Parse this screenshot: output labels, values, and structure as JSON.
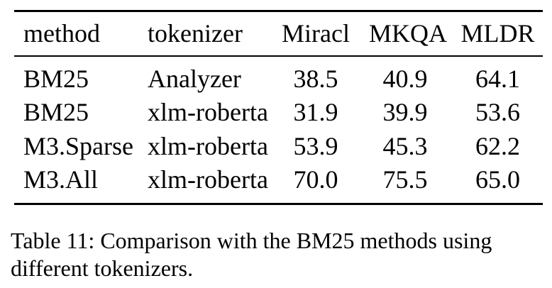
{
  "page": {
    "background": "#ffffff",
    "text_color": "#000000",
    "rule_color": "#000000"
  },
  "table": {
    "headers": [
      "method",
      "tokenizer",
      "Miracl",
      "MKQA",
      "MLDR"
    ],
    "rows": [
      [
        "BM25",
        "Analyzer",
        "38.5",
        "40.9",
        "64.1"
      ],
      [
        "BM25",
        "xlm-roberta",
        "31.9",
        "39.9",
        "53.6"
      ],
      [
        "M3.Sparse",
        "xlm-roberta",
        "53.9",
        "45.3",
        "62.2"
      ],
      [
        "M3.All",
        "xlm-roberta",
        "70.0",
        "75.5",
        "65.0"
      ]
    ]
  },
  "caption": {
    "line1": "Table 11: Comparison with the BM25 methods using",
    "line2": "different tokenizers.",
    "full_text": "Table 11: Comparison with the BM25 methods using different tokenizers."
  },
  "chart_data": {
    "type": "table",
    "title": "Table 11: Comparison with the BM25 methods using different tokenizers.",
    "columns": [
      "method",
      "tokenizer",
      "Miracl",
      "MKQA",
      "MLDR"
    ],
    "rows": [
      {
        "method": "BM25",
        "tokenizer": "Analyzer",
        "Miracl": 38.5,
        "MKQA": 40.9,
        "MLDR": 64.1
      },
      {
        "method": "BM25",
        "tokenizer": "xlm-roberta",
        "Miracl": 31.9,
        "MKQA": 39.9,
        "MLDR": 53.6
      },
      {
        "method": "M3.Sparse",
        "tokenizer": "xlm-roberta",
        "Miracl": 53.9,
        "MKQA": 45.3,
        "MLDR": 62.2
      },
      {
        "method": "M3.All",
        "tokenizer": "xlm-roberta",
        "Miracl": 70.0,
        "MKQA": 75.5,
        "MLDR": 65.0
      }
    ]
  }
}
